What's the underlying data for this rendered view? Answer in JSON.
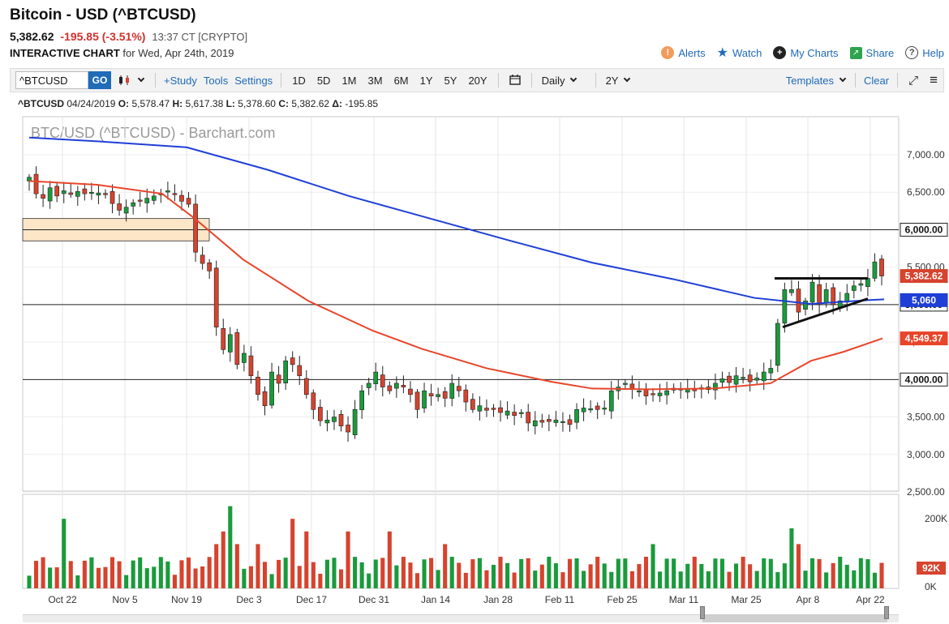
{
  "header": {
    "title": "Bitcoin - USD (^BTCUSD)",
    "last": "5,382.62",
    "change": "-195.85 (-3.51%)",
    "time": "13:37 CT [CRYPTO]",
    "interactive_label": "INTERACTIVE CHART",
    "interactive_date": "for Wed, Apr 24th, 2019"
  },
  "toplinks": {
    "alerts": "Alerts",
    "watch": "Watch",
    "my_charts": "My Charts",
    "share": "Share",
    "help": "Help"
  },
  "toolbar": {
    "symbol_value": "^BTCUSD",
    "go": "GO",
    "study": "+Study",
    "tools": "Tools",
    "settings": "Settings",
    "ranges": [
      "1D",
      "5D",
      "1M",
      "3M",
      "6M",
      "1Y",
      "5Y",
      "20Y"
    ],
    "interval": "Daily",
    "period": "2Y",
    "templates": "Templates",
    "clear": "Clear"
  },
  "ohlc": {
    "symbol": "^BTCUSD",
    "date": "04/24/2019",
    "open": "5,578.47",
    "high": "5,617.38",
    "low": "5,378.60",
    "close": "5,382.62",
    "delta": "-195.85"
  },
  "colors": {
    "up": "#1a9a3c",
    "down": "#d6432e",
    "ma_long": "#1f3fd6",
    "ma_short": "#e8452a",
    "last_badge": "#d6432e",
    "ma_long_badge": "#1f3fd6",
    "ma_short_badge": "#e8452a",
    "zone_fill": "#fde6c8",
    "accent": "#1f6bb7"
  },
  "chart_data": {
    "type": "candlestick",
    "watermark": "BTC/USD (^BTCUSD) - Barchart.com",
    "y_ticks": [
      "7,000.00",
      "6,500.00",
      "6,000.00",
      "5,500.00",
      "5,000.00",
      "4,500.00",
      "4,000.00",
      "3,500.00",
      "3,000.00",
      "2,500.00"
    ],
    "ylim": [
      2500,
      7500
    ],
    "x_ticks": [
      "Oct 22",
      "Nov 5",
      "Nov 19",
      "Dec 3",
      "Dec 17",
      "Dec 31",
      "Jan 14",
      "Jan 28",
      "Feb 11",
      "Feb 25",
      "Mar 11",
      "Mar 25",
      "Apr 8",
      "Apr 22"
    ],
    "price_badges": {
      "last": "5,382.62",
      "ma_long": "5,060",
      "ma_short": "4,549.37",
      "level_6000": "6,000.00",
      "level_5000": "5,000.00",
      "level_4000": "4,000.00"
    },
    "horizontal_lines": [
      6000,
      5000,
      4000
    ],
    "zone": {
      "from": 5850,
      "to": 6150,
      "start": "Oct 14",
      "end": "Nov 17"
    },
    "candles_weekly_close": [
      {
        "d": "Oct 15",
        "o": 6750,
        "c": 6450
      },
      {
        "d": "Oct 22",
        "o": 6450,
        "c": 6480
      },
      {
        "d": "Oct 29",
        "o": 6480,
        "c": 6390
      },
      {
        "d": "Nov 5",
        "o": 6390,
        "c": 6500
      },
      {
        "d": "Nov 12",
        "o": 6500,
        "c": 6350
      },
      {
        "d": "Nov 19",
        "o": 6350,
        "c": 4700
      },
      {
        "d": "Nov 26",
        "o": 4700,
        "c": 3900
      },
      {
        "d": "Dec 3",
        "o": 3900,
        "c": 4100
      },
      {
        "d": "Dec 10",
        "o": 4100,
        "c": 3300
      },
      {
        "d": "Dec 17",
        "o": 3300,
        "c": 3850
      },
      {
        "d": "Dec 24",
        "o": 3850,
        "c": 3950
      },
      {
        "d": "Dec 31",
        "o": 3950,
        "c": 3800
      },
      {
        "d": "Jan 7",
        "o": 3800,
        "c": 3650
      },
      {
        "d": "Jan 14",
        "o": 3650,
        "c": 3580
      },
      {
        "d": "Jan 21",
        "o": 3580,
        "c": 3550
      },
      {
        "d": "Jan 28",
        "o": 3550,
        "c": 3420
      },
      {
        "d": "Feb 4",
        "o": 3420,
        "c": 3600
      },
      {
        "d": "Feb 11",
        "o": 3600,
        "c": 3620
      },
      {
        "d": "Feb 18",
        "o": 3620,
        "c": 3900
      },
      {
        "d": "Feb 25",
        "o": 3900,
        "c": 3800
      },
      {
        "d": "Mar 4",
        "o": 3800,
        "c": 3880
      },
      {
        "d": "Mar 11",
        "o": 3880,
        "c": 3950
      },
      {
        "d": "Mar 18",
        "o": 3950,
        "c": 4000
      },
      {
        "d": "Mar 25",
        "o": 4000,
        "c": 4100
      },
      {
        "d": "Apr 1",
        "o": 4100,
        "c": 5100
      },
      {
        "d": "Apr 8",
        "o": 5100,
        "c": 5150
      },
      {
        "d": "Apr 15",
        "o": 5150,
        "c": 5300
      },
      {
        "d": "Apr 22",
        "o": 5578.47,
        "c": 5382.62
      }
    ],
    "volume_ticks": [
      "200K",
      "92K",
      "0K"
    ]
  }
}
